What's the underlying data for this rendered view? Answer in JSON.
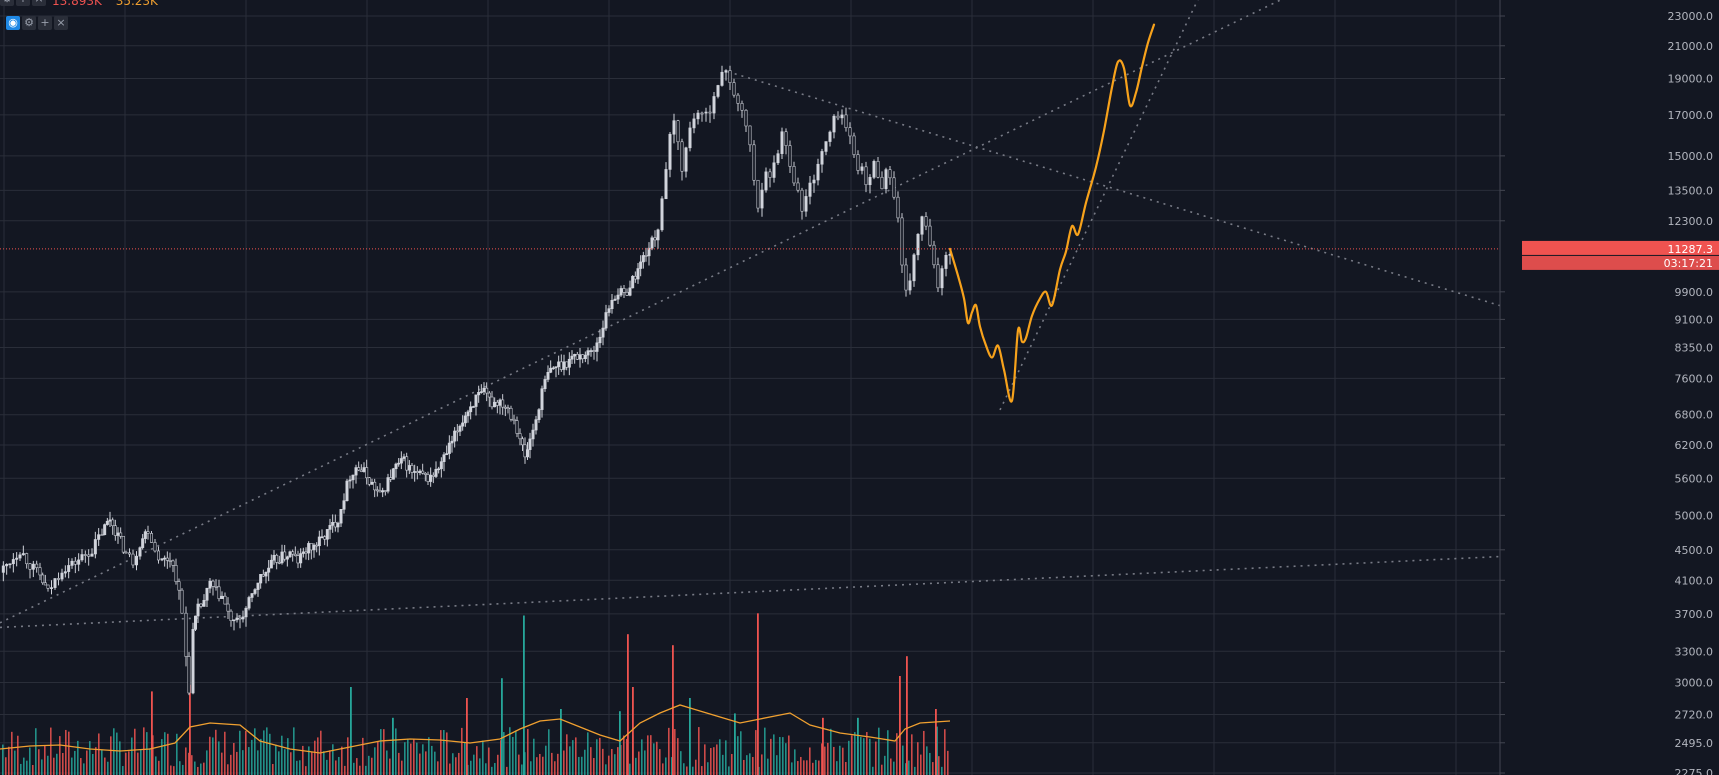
{
  "theme": {
    "background": "#131722",
    "grid": "#2a2e39",
    "axis_text": "#b2b5be",
    "up_candle": "#d1d4dc",
    "up_candle_border": "#e0e3eb",
    "down_candle": "#131722",
    "down_candle_border": "#c8cbd3",
    "volume_up": "#26a69a",
    "volume_down": "#ef5350",
    "volume_ma": "#f0a030",
    "projection": "#f7a21b",
    "trendline": "#787b86",
    "price_line": "#ef5350",
    "label_bg": "#ef5350"
  },
  "legend": {
    "volume_value": "13.893K",
    "volume_ma_value": "35.23K",
    "volume_value_color": "#ef5350",
    "volume_ma_color": "#f0a030"
  },
  "controls": {
    "row1": [
      "eye-icon",
      "settings-icon",
      "plus-icon",
      "close-icon"
    ],
    "row2": [
      "gear-icon",
      "plus-icon",
      "close-icon"
    ]
  },
  "chart_data": {
    "type": "candlestick",
    "title": "",
    "scale": "log",
    "y_ticks": [
      "23000.0",
      "21000.0",
      "19000.0",
      "17000.0",
      "15000.0",
      "13500.0",
      "12300.0",
      "9900.0",
      "9100.0",
      "8350.0",
      "7600.0",
      "6800.0",
      "6200.0",
      "5600.0",
      "5000.0",
      "4500.0",
      "4100.0",
      "3700.0",
      "3300.0",
      "3000.0",
      "2720.0",
      "2495.0",
      "2275.0"
    ],
    "ylim": [
      2200,
      24500
    ],
    "current_price": "11287.3",
    "countdown": "03:17:21",
    "close_path": [
      [
        0,
        4200
      ],
      [
        10,
        4350
      ],
      [
        20,
        4500
      ],
      [
        30,
        4300
      ],
      [
        40,
        4150
      ],
      [
        48,
        3950
      ],
      [
        55,
        4100
      ],
      [
        62,
        4250
      ],
      [
        72,
        4300
      ],
      [
        82,
        4400
      ],
      [
        92,
        4500
      ],
      [
        102,
        4750
      ],
      [
        110,
        4950
      ],
      [
        118,
        4700
      ],
      [
        126,
        4450
      ],
      [
        133,
        4350
      ],
      [
        140,
        4600
      ],
      [
        148,
        4800
      ],
      [
        155,
        4500
      ],
      [
        162,
        4350
      ],
      [
        170,
        4400
      ],
      [
        176,
        4150
      ],
      [
        182,
        3700
      ],
      [
        186,
        3250
      ],
      [
        189,
        2950
      ],
      [
        193,
        3500
      ],
      [
        198,
        3750
      ],
      [
        204,
        3850
      ],
      [
        210,
        4050
      ],
      [
        216,
        3950
      ],
      [
        222,
        3900
      ],
      [
        228,
        3700
      ],
      [
        234,
        3580
      ],
      [
        240,
        3650
      ],
      [
        246,
        3750
      ],
      [
        252,
        3900
      ],
      [
        258,
        4100
      ],
      [
        266,
        4200
      ],
      [
        274,
        4350
      ],
      [
        282,
        4400
      ],
      [
        290,
        4450
      ],
      [
        298,
        4350
      ],
      [
        306,
        4500
      ],
      [
        314,
        4550
      ],
      [
        322,
        4650
      ],
      [
        330,
        4800
      ],
      [
        338,
        4950
      ],
      [
        344,
        5300
      ],
      [
        350,
        5650
      ],
      [
        356,
        5800
      ],
      [
        364,
        5700
      ],
      [
        372,
        5500
      ],
      [
        380,
        5300
      ],
      [
        388,
        5550
      ],
      [
        396,
        5800
      ],
      [
        404,
        5900
      ],
      [
        412,
        5700
      ],
      [
        420,
        5650
      ],
      [
        428,
        5600
      ],
      [
        436,
        5700
      ],
      [
        444,
        5950
      ],
      [
        452,
        6250
      ],
      [
        460,
        6600
      ],
      [
        468,
        6900
      ],
      [
        476,
        7150
      ],
      [
        484,
        7250
      ],
      [
        492,
        7050
      ],
      [
        500,
        7100
      ],
      [
        508,
        6950
      ],
      [
        514,
        6700
      ],
      [
        520,
        6350
      ],
      [
        525,
        5950
      ],
      [
        530,
        6300
      ],
      [
        536,
        6700
      ],
      [
        542,
        7300
      ],
      [
        548,
        7700
      ],
      [
        556,
        7900
      ],
      [
        564,
        7950
      ],
      [
        572,
        8100
      ],
      [
        580,
        8150
      ],
      [
        588,
        8200
      ],
      [
        594,
        8300
      ],
      [
        600,
        8700
      ],
      [
        606,
        9200
      ],
      [
        612,
        9700
      ],
      [
        618,
        9900
      ],
      [
        624,
        9800
      ],
      [
        630,
        10100
      ],
      [
        638,
        10600
      ],
      [
        646,
        11200
      ],
      [
        652,
        11500
      ],
      [
        658,
        12000
      ],
      [
        662,
        13300
      ],
      [
        666,
        14200
      ],
      [
        670,
        15800
      ],
      [
        674,
        16600
      ],
      [
        678,
        15600
      ],
      [
        682,
        14500
      ],
      [
        686,
        15300
      ],
      [
        690,
        16300
      ],
      [
        694,
        16900
      ],
      [
        698,
        17200
      ],
      [
        702,
        16800
      ],
      [
        706,
        17000
      ],
      [
        710,
        17400
      ],
      [
        714,
        18200
      ],
      [
        718,
        18500
      ],
      [
        722,
        19100
      ],
      [
        726,
        19600
      ],
      [
        730,
        18900
      ],
      [
        734,
        18200
      ],
      [
        738,
        17500
      ],
      [
        742,
        17000
      ],
      [
        746,
        16500
      ],
      [
        750,
        15500
      ],
      [
        754,
        13800
      ],
      [
        758,
        12800
      ],
      [
        762,
        13700
      ],
      [
        766,
        14500
      ],
      [
        770,
        13900
      ],
      [
        774,
        14600
      ],
      [
        778,
        15300
      ],
      [
        782,
        16100
      ],
      [
        786,
        15500
      ],
      [
        790,
        14700
      ],
      [
        794,
        14000
      ],
      [
        798,
        13400
      ],
      [
        802,
        12700
      ],
      [
        806,
        13200
      ],
      [
        810,
        13700
      ],
      [
        814,
        14100
      ],
      [
        818,
        14700
      ],
      [
        822,
        15100
      ],
      [
        826,
        15600
      ],
      [
        830,
        16100
      ],
      [
        834,
        16700
      ],
      [
        838,
        17100
      ],
      [
        842,
        17000
      ],
      [
        846,
        16300
      ],
      [
        850,
        15800
      ],
      [
        854,
        15100
      ],
      [
        858,
        14600
      ],
      [
        862,
        14300
      ],
      [
        866,
        13700
      ],
      [
        870,
        14100
      ],
      [
        874,
        14600
      ],
      [
        878,
        14200
      ],
      [
        882,
        13800
      ],
      [
        886,
        14300
      ],
      [
        890,
        14000
      ],
      [
        894,
        13400
      ],
      [
        898,
        12300
      ],
      [
        902,
        10600
      ],
      [
        906,
        9800
      ],
      [
        910,
        10300
      ],
      [
        914,
        11100
      ],
      [
        918,
        11700
      ],
      [
        922,
        12400
      ],
      [
        926,
        12100
      ],
      [
        930,
        11300
      ],
      [
        934,
        10600
      ],
      [
        938,
        10100
      ],
      [
        942,
        10700
      ],
      [
        946,
        11100
      ],
      [
        950,
        11287
      ]
    ],
    "projection_path": [
      [
        950,
        11287
      ],
      [
        958,
        10400
      ],
      [
        964,
        9700
      ],
      [
        968,
        9000
      ],
      [
        972,
        9300
      ],
      [
        976,
        9500
      ],
      [
        980,
        8900
      ],
      [
        986,
        8400
      ],
      [
        992,
        8100
      ],
      [
        998,
        8400
      ],
      [
        1004,
        7800
      ],
      [
        1012,
        7100
      ],
      [
        1018,
        8800
      ],
      [
        1022,
        8500
      ],
      [
        1026,
        8600
      ],
      [
        1032,
        9200
      ],
      [
        1040,
        9700
      ],
      [
        1046,
        9900
      ],
      [
        1052,
        9500
      ],
      [
        1060,
        10600
      ],
      [
        1066,
        11200
      ],
      [
        1072,
        12100
      ],
      [
        1078,
        11800
      ],
      [
        1086,
        13000
      ],
      [
        1096,
        14500
      ],
      [
        1104,
        16200
      ],
      [
        1112,
        18500
      ],
      [
        1118,
        20000
      ],
      [
        1124,
        19600
      ],
      [
        1130,
        17500
      ],
      [
        1136,
        18200
      ],
      [
        1142,
        19700
      ],
      [
        1148,
        21200
      ],
      [
        1154,
        22400
      ]
    ],
    "trendlines": [
      {
        "name": "support-uptrend",
        "points": [
          [
            0,
            3550
          ],
          [
            1719,
            4550
          ]
        ]
      },
      {
        "name": "medium-uptrend",
        "points": [
          [
            0,
            3600
          ],
          [
            1290,
            24500
          ]
        ]
      },
      {
        "name": "descending-resistance",
        "points": [
          [
            728,
            19400
          ],
          [
            1719,
            7750
          ]
        ]
      },
      {
        "name": "steep-uptrend",
        "points": [
          [
            1000,
            6900
          ],
          [
            1200,
            24500
          ]
        ]
      }
    ],
    "volume": {
      "ma_path": [
        [
          0,
          14
        ],
        [
          30,
          17
        ],
        [
          60,
          18
        ],
        [
          90,
          14
        ],
        [
          120,
          12
        ],
        [
          150,
          14
        ],
        [
          175,
          20
        ],
        [
          190,
          36
        ],
        [
          210,
          40
        ],
        [
          240,
          38
        ],
        [
          260,
          22
        ],
        [
          290,
          14
        ],
        [
          320,
          10
        ],
        [
          350,
          16
        ],
        [
          380,
          22
        ],
        [
          410,
          24
        ],
        [
          440,
          23
        ],
        [
          470,
          20
        ],
        [
          500,
          24
        ],
        [
          520,
          34
        ],
        [
          540,
          42
        ],
        [
          560,
          44
        ],
        [
          580,
          36
        ],
        [
          600,
          28
        ],
        [
          620,
          22
        ],
        [
          640,
          40
        ],
        [
          660,
          50
        ],
        [
          680,
          58
        ],
        [
          700,
          52
        ],
        [
          720,
          46
        ],
        [
          740,
          40
        ],
        [
          760,
          44
        ],
        [
          790,
          50
        ],
        [
          810,
          38
        ],
        [
          840,
          30
        ],
        [
          870,
          26
        ],
        [
          895,
          22
        ],
        [
          905,
          34
        ],
        [
          920,
          40
        ],
        [
          950,
          42
        ]
      ],
      "bars_up": [
        [
          350,
          80
        ],
        [
          392,
          52
        ],
        [
          501,
          88
        ],
        [
          523,
          145
        ],
        [
          560,
          60
        ],
        [
          619,
          58
        ],
        [
          689,
          70
        ],
        [
          734,
          56
        ],
        [
          857,
          52
        ],
        [
          936,
          44
        ]
      ],
      "bars_down": [
        [
          151,
          76
        ],
        [
          189,
          82
        ],
        [
          466,
          70
        ],
        [
          627,
          128
        ],
        [
          632,
          80
        ],
        [
          672,
          118
        ],
        [
          757,
          147
        ],
        [
          822,
          52
        ],
        [
          899,
          90
        ],
        [
          906,
          108
        ],
        [
          935,
          60
        ]
      ]
    },
    "current_price_label": "11287.3"
  }
}
